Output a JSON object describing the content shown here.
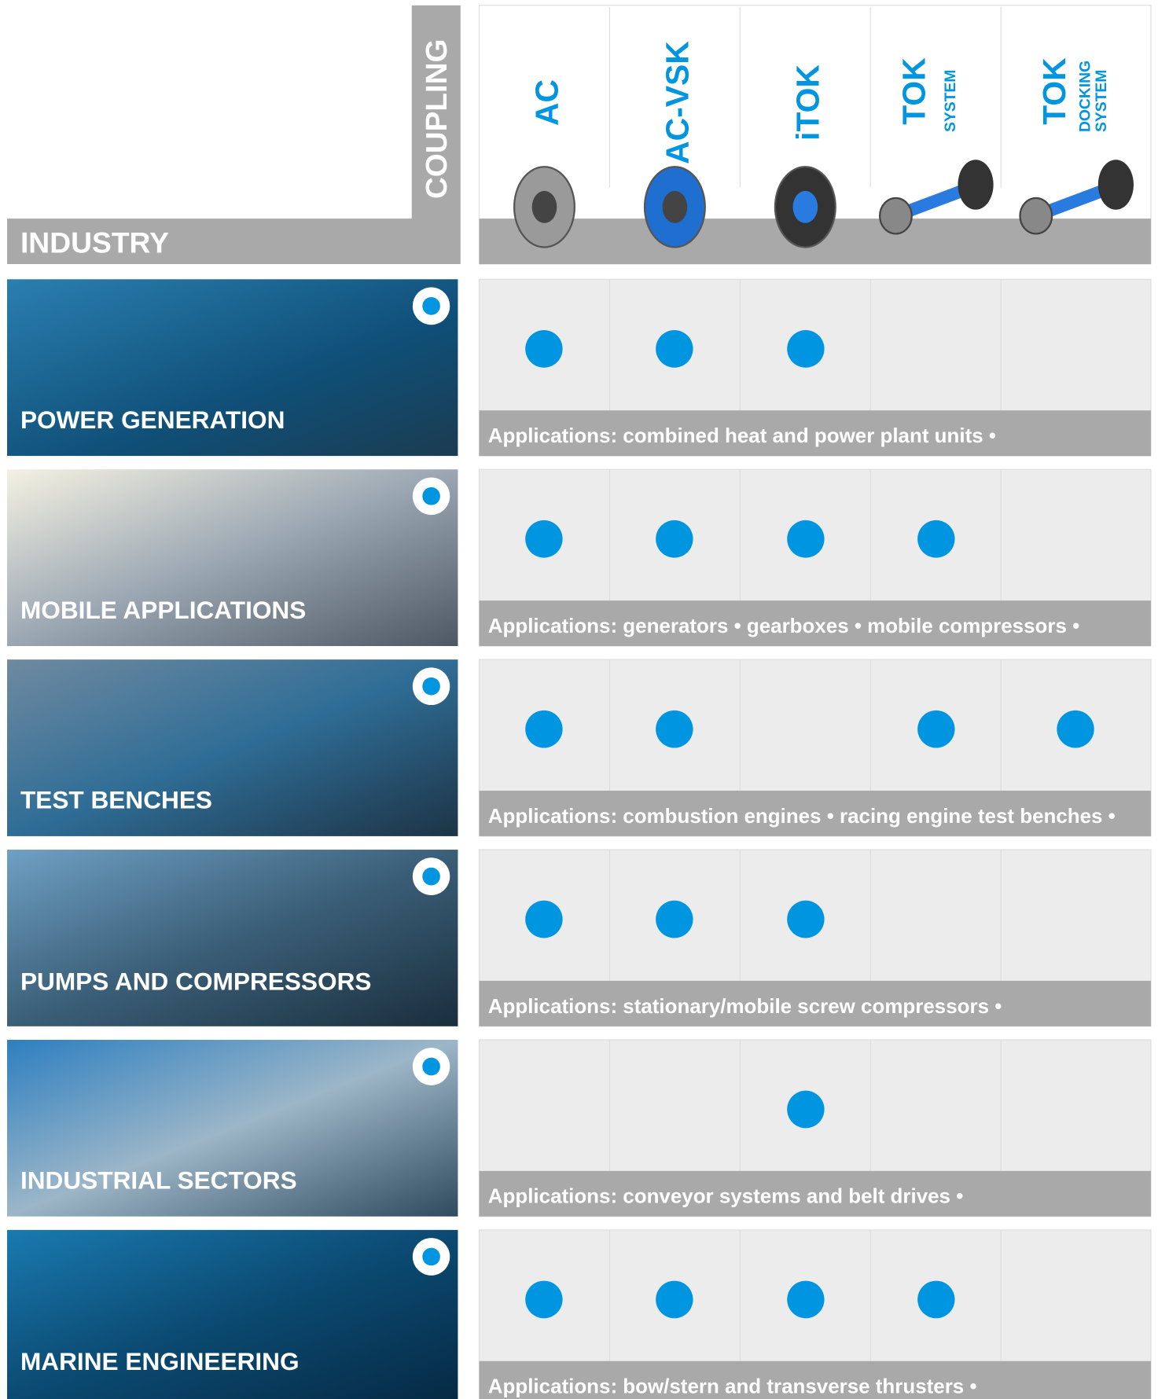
{
  "header": {
    "coupling_label": "COUPLING",
    "industry_label": "INDUSTRY"
  },
  "couplings": [
    {
      "name": "AC"
    },
    {
      "name": "AC-VSK"
    },
    {
      "name": "iTOK"
    },
    {
      "name": "TOK",
      "sub": [
        "SYSTEM"
      ]
    },
    {
      "name": "TOK",
      "sub": [
        "DOCKING",
        "SYSTEM"
      ]
    }
  ],
  "industries": [
    {
      "name": "POWER GENERATION",
      "applications": "Applications: combined heat and power plant units •",
      "available": [
        true,
        true,
        true,
        false,
        false
      ]
    },
    {
      "name": "MOBILE APPLICATIONS",
      "applications": "Applications: generators • gearboxes • mobile compressors •",
      "available": [
        true,
        true,
        true,
        true,
        false
      ]
    },
    {
      "name": "TEST BENCHES",
      "applications": "Applications: combustion engines • racing engine test benches •",
      "available": [
        true,
        true,
        false,
        true,
        true
      ]
    },
    {
      "name": "PUMPS AND COMPRESSORS",
      "applications": "Applications: stationary/mobile screw compressors •",
      "available": [
        true,
        true,
        true,
        false,
        false
      ]
    },
    {
      "name": "INDUSTRIAL SECTORS",
      "applications": "Applications: conveyor systems and belt drives •",
      "available": [
        false,
        false,
        true,
        false,
        false
      ]
    },
    {
      "name": "MARINE ENGINEERING",
      "applications": "Applications: bow/stern and transverse thrusters •",
      "available": [
        true,
        true,
        true,
        true,
        false
      ]
    }
  ]
}
